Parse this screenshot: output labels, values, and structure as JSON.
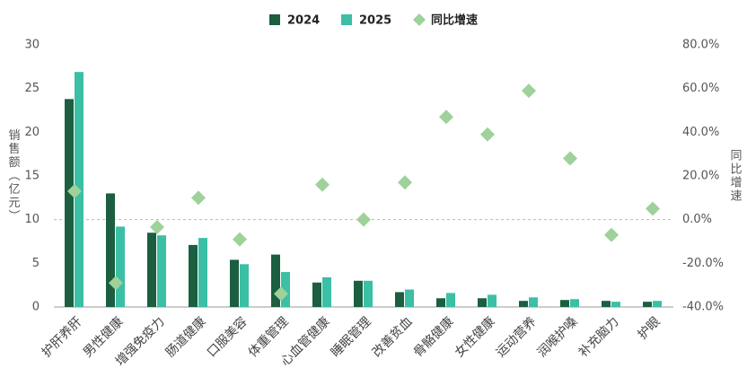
{
  "chart_data": {
    "type": "bar",
    "categories": [
      "护肝养肝",
      "男性健康",
      "增强免疫力",
      "肠道健康",
      "口服美容",
      "体重管理",
      "心血管健康",
      "睡眠管理",
      "改善贫血",
      "骨骼健康",
      "女性健康",
      "运动营养",
      "润喉护嗓",
      "补充脑力",
      "护眼"
    ],
    "series": [
      {
        "name": "2024",
        "color": "#1b5e40",
        "values": [
          23.8,
          13.0,
          8.5,
          7.1,
          5.4,
          6.0,
          2.8,
          3.0,
          1.7,
          1.0,
          1.0,
          0.7,
          0.8,
          0.7,
          0.6
        ]
      },
      {
        "name": "2025",
        "color": "#3bbfa5",
        "values": [
          26.9,
          9.2,
          8.2,
          7.9,
          4.9,
          4.0,
          3.4,
          3.0,
          2.0,
          1.6,
          1.4,
          1.1,
          0.9,
          0.6,
          0.7
        ]
      },
      {
        "name": "同比增速",
        "color": "#9fd19a",
        "type": "scatter",
        "axis": "y2",
        "values": [
          13,
          -29,
          -3.4,
          10,
          -9,
          -34,
          16,
          0,
          17,
          47,
          39,
          59,
          28,
          -7,
          5
        ]
      }
    ],
    "y_label": "销售额（亿元）",
    "y2_label": "同比增速",
    "ylim": [
      0,
      30
    ],
    "yticks": [
      0,
      5,
      10,
      15,
      20,
      25,
      30
    ],
    "y2lim": [
      -40,
      80
    ],
    "y2ticks": [
      {
        "value": -40,
        "label": "-40.0%"
      },
      {
        "value": -20,
        "label": "-20.0%"
      },
      {
        "value": 0,
        "label": "0.0%"
      },
      {
        "value": 20,
        "label": "20.0%"
      },
      {
        "value": 40,
        "label": "40.0%"
      },
      {
        "value": 60,
        "label": "60.0%"
      },
      {
        "value": 80,
        "label": "80.0%"
      }
    ],
    "legend": "top"
  }
}
